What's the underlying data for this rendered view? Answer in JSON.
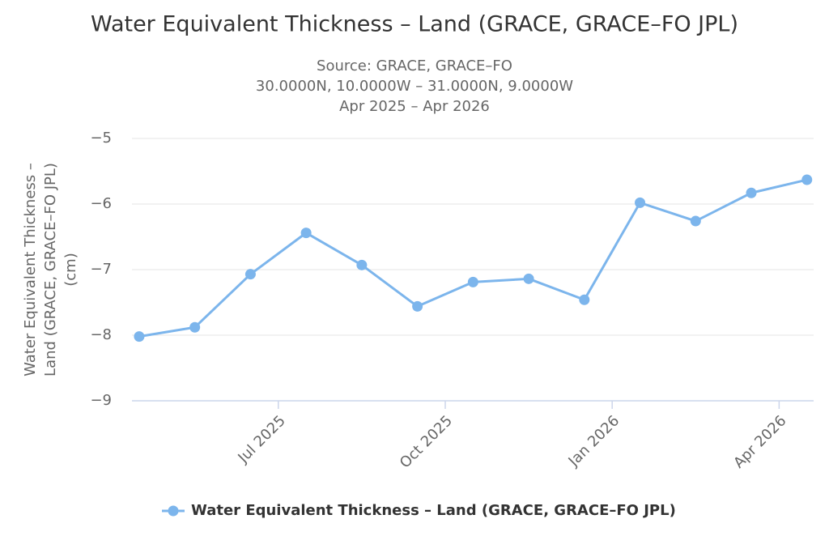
{
  "chart_data": {
    "type": "line",
    "title": "Water Equivalent Thickness – Land (GRACE, GRACE–FO JPL)",
    "subtitle": [
      "Source: GRACE, GRACE–FO",
      "30.0000N, 10.0000W – 31.0000N, 9.0000W",
      "Apr 2025 – Apr 2026"
    ],
    "y_label": [
      "Water Equivalent Thickness –",
      "Land (GRACE, GRACE–FO JPL)",
      "(cm)"
    ],
    "x": [
      "2025-04",
      "2025-05",
      "2025-06",
      "2025-07",
      "2025-08",
      "2025-09",
      "2025-10",
      "2025-11",
      "2025-12",
      "2026-01",
      "2026-02",
      "2026-03",
      "2026-04"
    ],
    "series": [
      {
        "name": "Water Equivalent Thickness – Land (GRACE, GRACE–FO JPL)",
        "color": "#7cb5ec",
        "values": [
          -8.02,
          -7.88,
          -7.07,
          -6.44,
          -6.93,
          -7.56,
          -7.19,
          -7.14,
          -7.46,
          -5.98,
          -6.26,
          -5.83,
          -5.63
        ]
      }
    ],
    "xlim": [
      "2025-04",
      "2026-04"
    ],
    "xticks": [
      {
        "value": "2025-07",
        "label": "Jul 2025"
      },
      {
        "value": "2025-10",
        "label": "Oct 2025"
      },
      {
        "value": "2026-01",
        "label": "Jan 2026"
      },
      {
        "value": "2026-04",
        "label": "Apr 2026"
      }
    ],
    "ylim": [
      -9,
      -5
    ],
    "yticks": [
      {
        "value": -9,
        "label": "−9"
      },
      {
        "value": -8,
        "label": "−8"
      },
      {
        "value": -7,
        "label": "−7"
      },
      {
        "value": -6,
        "label": "−6"
      },
      {
        "value": -5,
        "label": "−5"
      }
    ],
    "grid": true,
    "legend": "bottom"
  }
}
